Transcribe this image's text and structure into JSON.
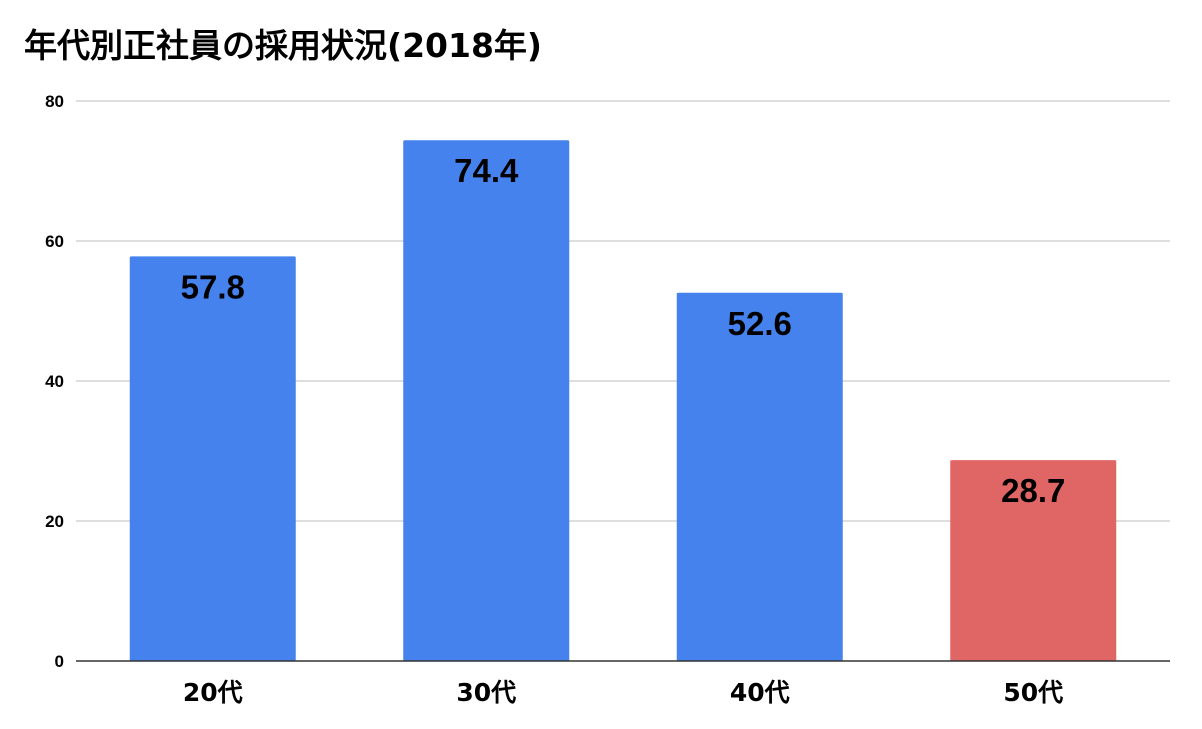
{
  "chart_data": {
    "type": "bar",
    "title": "年代別正社員の採用状況(2018年)",
    "xlabel": "",
    "ylabel": "",
    "categories": [
      "20代",
      "30代",
      "40代",
      "50代"
    ],
    "values": [
      57.8,
      74.4,
      52.6,
      28.7
    ],
    "data_labels": [
      "57.8",
      "74.4",
      "52.6",
      "28.7"
    ],
    "ylim": [
      0,
      80
    ],
    "yticks": [
      0,
      20,
      40,
      60,
      80
    ],
    "grid": true,
    "legend": "none",
    "colors": {
      "default_bar": "#4582ee",
      "highlight_bar": "#e06666",
      "gridline": "#bdbdbd",
      "baseline": "#333333"
    },
    "bar_colors": [
      "#4582ee",
      "#4582ee",
      "#4582ee",
      "#e06666"
    ]
  }
}
